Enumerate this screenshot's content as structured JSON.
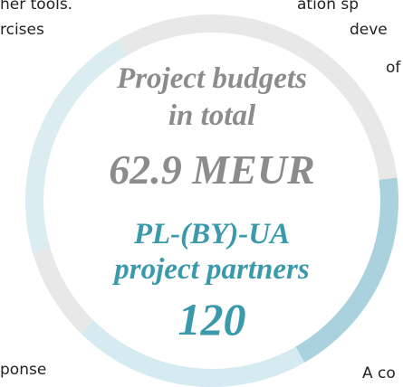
{
  "fragments": {
    "top_left": "her tools.",
    "left": "rcises",
    "top_right": "ation sp",
    "right_1": "deve",
    "right_2": "of",
    "bottom_left": "ponse",
    "bottom_right": "A co"
  },
  "center": {
    "budget_label_1": "Project budgets",
    "budget_label_2": "in total",
    "budget_value": "62.9 MEUR",
    "partners_label_1": "PL-(BY)-UA",
    "partners_label_2": "project partners",
    "partners_value": "120"
  }
}
